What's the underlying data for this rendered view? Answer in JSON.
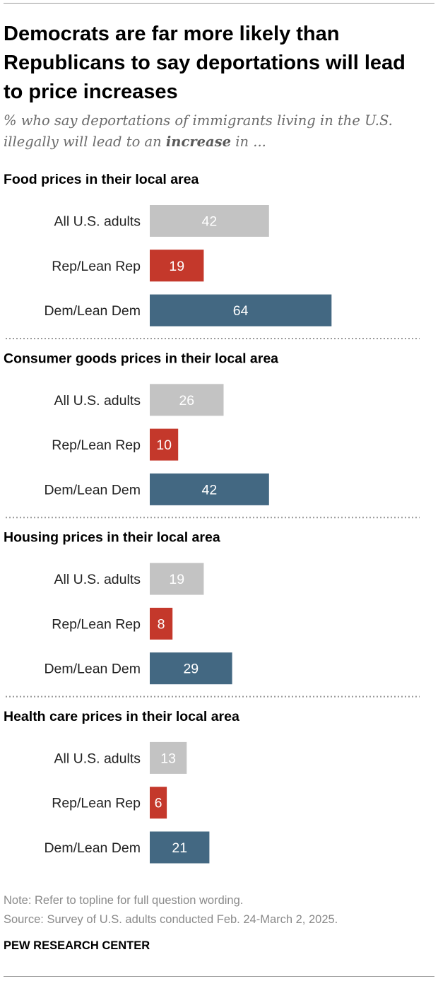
{
  "title": "Democrats are far more likely than Republicans to say deportations will lead to price increases",
  "subtitle": {
    "before": "% who say deportations of immigrants living in the U.S. illegally will lead to an ",
    "emphasis": "increase",
    "after": " in ..."
  },
  "colors": {
    "all": "#c3c3c3",
    "rep": "#c4382b",
    "dem": "#436882"
  },
  "chart_data": {
    "type": "bar",
    "orientation": "horizontal",
    "xlim": [
      0,
      100
    ],
    "categories": [
      "All U.S. adults",
      "Rep/Lean Rep",
      "Dem/Lean Dem"
    ],
    "panels": [
      {
        "title": "Food prices in their local area",
        "values": [
          42,
          19,
          64
        ]
      },
      {
        "title": "Consumer goods prices in their local area",
        "values": [
          26,
          10,
          42
        ]
      },
      {
        "title": "Housing prices in their local area",
        "values": [
          19,
          8,
          29
        ]
      },
      {
        "title": "Health care prices in their local area",
        "values": [
          13,
          6,
          21
        ]
      }
    ]
  },
  "footer": {
    "note": "Note: Refer to topline for full question wording.",
    "source": "Source: Survey of U.S. adults conducted Feb. 24-March 2, 2025.",
    "brand": "PEW RESEARCH CENTER"
  }
}
